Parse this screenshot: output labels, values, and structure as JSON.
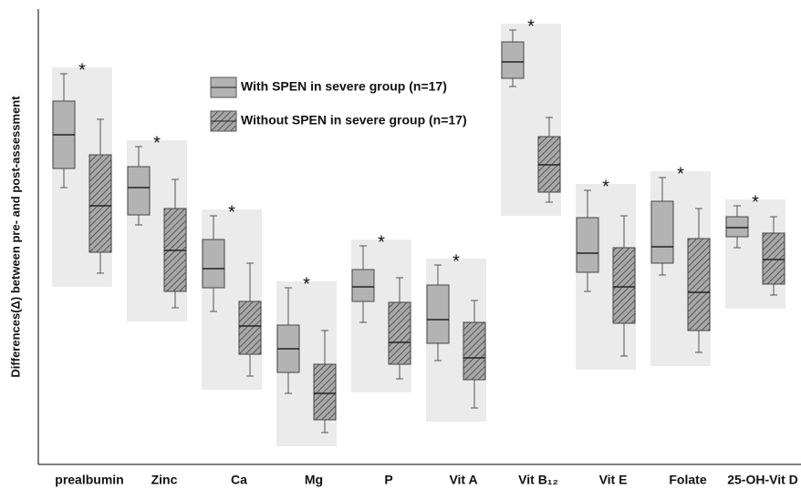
{
  "chart_data": {
    "type": "box",
    "y_label": "Differences(Δ) between pre- and post-assessment",
    "categories": [
      "prealbumin",
      "Zinc",
      "Ca",
      "Mg",
      "P",
      "Vit A",
      "Vit B₁₂",
      "Vit E",
      "Folate",
      "25-OH-Vit D"
    ],
    "annotations": [
      "*",
      "*",
      "*",
      "*",
      "*",
      "*",
      "*",
      "*",
      "*",
      "*"
    ],
    "ylim": [
      0,
      100
    ],
    "series": [
      {
        "name": "With SPEN in severe group (n=17)",
        "color": "#b3b3b3",
        "hatch": false,
        "boxes": [
          {
            "min": 60.8,
            "q1": 65,
            "median": 72.4,
            "q3": 79.8,
            "max": 85.8
          },
          {
            "min": 52.6,
            "q1": 54.8,
            "median": 60.8,
            "q3": 65.4,
            "max": 69.8
          },
          {
            "min": 33.6,
            "q1": 38.8,
            "median": 43,
            "q3": 49.4,
            "max": 54.6
          },
          {
            "min": 15.6,
            "q1": 20.2,
            "median": 25.4,
            "q3": 30.6,
            "max": 38.8
          },
          {
            "min": 31.2,
            "q1": 35.8,
            "median": 39,
            "q3": 42.8,
            "max": 48
          },
          {
            "min": 22.8,
            "q1": 26.6,
            "median": 31.8,
            "q3": 39.4,
            "max": 43.8
          },
          {
            "min": 83,
            "q1": 84.8,
            "median": 88.4,
            "q3": 92.8,
            "max": 95.4
          },
          {
            "min": 38,
            "q1": 42.2,
            "median": 46.4,
            "q3": 54.2,
            "max": 60.2
          },
          {
            "min": 41.6,
            "q1": 44.2,
            "median": 47.8,
            "q3": 57.8,
            "max": 63
          },
          {
            "min": 47.6,
            "q1": 50,
            "median": 52,
            "q3": 54.4,
            "max": 56.8
          }
        ]
      },
      {
        "name": "Without SPEN in severe group (n=17)",
        "color": "#a8a8a8",
        "hatch": true,
        "boxes": [
          {
            "min": 42,
            "q1": 46.6,
            "median": 56.8,
            "q3": 68,
            "max": 75.8
          },
          {
            "min": 34.4,
            "q1": 38,
            "median": 47,
            "q3": 56.2,
            "max": 62.6
          },
          {
            "min": 19.4,
            "q1": 24.2,
            "median": 30.4,
            "q3": 35.8,
            "max": 44.2
          },
          {
            "min": 7,
            "q1": 9.8,
            "median": 15.6,
            "q3": 22,
            "max": 29.4
          },
          {
            "min": 18.8,
            "q1": 22,
            "median": 26.8,
            "q3": 35.6,
            "max": 41
          },
          {
            "min": 12.4,
            "q1": 18.6,
            "median": 23.4,
            "q3": 31.2,
            "max": 36
          },
          {
            "min": 57.6,
            "q1": 59.8,
            "median": 65.8,
            "q3": 72,
            "max": 76.2
          },
          {
            "min": 23.8,
            "q1": 31,
            "median": 39,
            "q3": 47.6,
            "max": 54.6
          },
          {
            "min": 24.6,
            "q1": 29.4,
            "median": 37.8,
            "q3": 49.6,
            "max": 56.2
          },
          {
            "min": 37.2,
            "q1": 39.6,
            "median": 45,
            "q3": 50.8,
            "max": 54.4
          }
        ]
      }
    ]
  }
}
